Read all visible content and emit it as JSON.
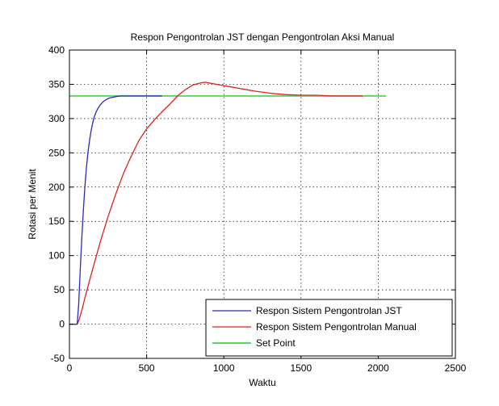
{
  "chart_data": {
    "type": "line",
    "title": "Respon Pengontrolan JST dengan Pengontrolan Aksi Manual",
    "xlabel": "Waktu",
    "ylabel": "Rotasi per Menit",
    "xlim": [
      0,
      2500
    ],
    "ylim": [
      -50,
      400
    ],
    "xticks": [
      0,
      500,
      1000,
      1500,
      2000,
      2500
    ],
    "yticks": [
      -50,
      0,
      50,
      100,
      150,
      200,
      250,
      300,
      350,
      400
    ],
    "grid": true,
    "legend_position": "bottom-right",
    "series": [
      {
        "name": "Respon Sistem Pengontrolan JST",
        "color": "#2b2bb8",
        "x": [
          0,
          50,
          60,
          70,
          80,
          90,
          100,
          110,
          120,
          130,
          140,
          150,
          160,
          170,
          180,
          200,
          220,
          240,
          260,
          280,
          300,
          330,
          360,
          400,
          450,
          500,
          560,
          600
        ],
        "y": [
          0,
          0,
          30,
          80,
          125,
          165,
          200,
          228,
          250,
          268,
          282,
          293,
          302,
          308,
          313,
          320,
          325,
          328,
          330,
          331,
          332,
          333,
          333,
          333,
          333,
          333,
          333,
          333
        ]
      },
      {
        "name": "Respon Sistem Pengontrolan Manual",
        "color": "#e02020",
        "x": [
          0,
          50,
          60,
          80,
          100,
          150,
          200,
          250,
          300,
          350,
          400,
          450,
          500,
          550,
          600,
          650,
          700,
          750,
          800,
          850,
          880,
          900,
          950,
          1000,
          1050,
          1100,
          1150,
          1200,
          1300,
          1400,
          1500,
          1550,
          1600,
          1700,
          1800,
          1900
        ],
        "y": [
          0,
          0,
          5,
          20,
          38,
          80,
          120,
          157,
          190,
          220,
          245,
          268,
          285,
          298,
          310,
          321,
          333,
          342,
          349,
          352,
          353,
          352,
          350,
          348,
          346,
          344,
          342,
          340,
          337,
          335,
          334,
          334,
          334,
          333,
          333,
          333
        ]
      },
      {
        "name": "Set Point",
        "color": "#60d860",
        "x": [
          0,
          2050
        ],
        "y": [
          333,
          333
        ]
      }
    ]
  }
}
